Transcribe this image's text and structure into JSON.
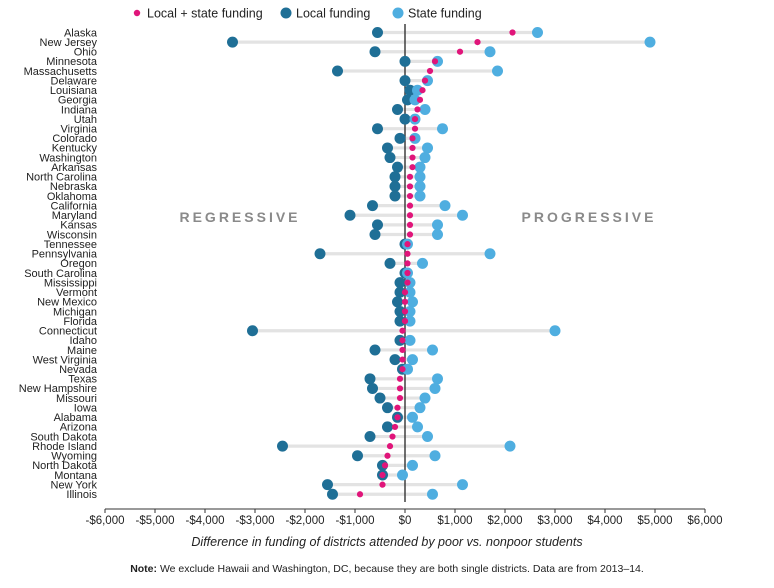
{
  "chart_data": {
    "type": "dot-range",
    "xlabel": "Difference in funding of districts attended by poor vs. nonpoor students",
    "xlim": [
      -6000,
      6000
    ],
    "xticks": [
      -6000,
      -5000,
      -4000,
      -3000,
      -2000,
      -1000,
      0,
      1000,
      2000,
      3000,
      4000,
      5000,
      6000
    ],
    "xtick_labels": [
      "-$6,000",
      "-$5,000",
      "-$4,000",
      "-$3,000",
      "-$2,000",
      "-$1,000",
      "$0",
      "$1,000",
      "$2,000",
      "$3,000",
      "$4,000",
      "$5,000",
      "$6,000"
    ],
    "region_labels": {
      "left": "REGRESSIVE",
      "right": "PROGRESSIVE"
    },
    "legend": [
      {
        "key": "total",
        "label": "Local + state funding",
        "color": "#e0157a"
      },
      {
        "key": "local",
        "label": "Local funding",
        "color": "#1f6f96"
      },
      {
        "key": "state",
        "label": "State funding",
        "color": "#4faee0"
      }
    ],
    "states": [
      "Alaska",
      "New Jersey",
      "Ohio",
      "Minnesota",
      "Massachusetts",
      "Delaware",
      "Louisiana",
      "Georgia",
      "Indiana",
      "Utah",
      "Virginia",
      "Colorado",
      "Kentucky",
      "Washington",
      "Arkansas",
      "North Carolina",
      "Nebraska",
      "Oklahoma",
      "California",
      "Maryland",
      "Kansas",
      "Wisconsin",
      "Tennessee",
      "Pennsylvania",
      "Oregon",
      "South Carolina",
      "Mississippi",
      "Vermont",
      "New Mexico",
      "Michigan",
      "Florida",
      "Connecticut",
      "Idaho",
      "Maine",
      "West Virginia",
      "Nevada",
      "Texas",
      "New Hampshire",
      "Missouri",
      "Iowa",
      "Alabama",
      "Arizona",
      "South Dakota",
      "Rhode Island",
      "Wyoming",
      "North Dakota",
      "Montana",
      "New York",
      "Illinois"
    ],
    "total": [
      2150,
      1450,
      1100,
      600,
      500,
      400,
      350,
      300,
      250,
      200,
      200,
      150,
      150,
      150,
      150,
      100,
      100,
      100,
      100,
      100,
      100,
      100,
      50,
      50,
      50,
      50,
      50,
      0,
      0,
      0,
      0,
      -50,
      -50,
      -50,
      -50,
      -50,
      -100,
      -100,
      -100,
      -150,
      -150,
      -200,
      -250,
      -300,
      -350,
      -400,
      -450,
      -450,
      -900
    ],
    "local": [
      -550,
      -3450,
      -600,
      0,
      -1350,
      0,
      100,
      50,
      -150,
      0,
      -550,
      -100,
      -350,
      -300,
      -150,
      -200,
      -200,
      -200,
      -650,
      -1100,
      -550,
      -600,
      0,
      -1700,
      -300,
      0,
      -100,
      -100,
      -150,
      -100,
      -100,
      -3050,
      -100,
      -600,
      -200,
      -50,
      -700,
      -650,
      -500,
      -350,
      -150,
      -350,
      -700,
      -2450,
      -950,
      -450,
      -450,
      -1550,
      -1450
    ],
    "state": [
      2650,
      4900,
      1700,
      650,
      1850,
      450,
      250,
      200,
      400,
      200,
      750,
      200,
      450,
      400,
      300,
      300,
      300,
      300,
      800,
      1150,
      650,
      650,
      50,
      1700,
      350,
      50,
      100,
      100,
      150,
      100,
      100,
      3000,
      100,
      550,
      150,
      50,
      650,
      600,
      400,
      300,
      150,
      250,
      450,
      2100,
      600,
      150,
      -50,
      1150,
      550
    ]
  },
  "note": {
    "label": "Note:",
    "text": " We exclude Hawaii and Washington, DC, because they are both single districts. Data are from 2013–14."
  }
}
